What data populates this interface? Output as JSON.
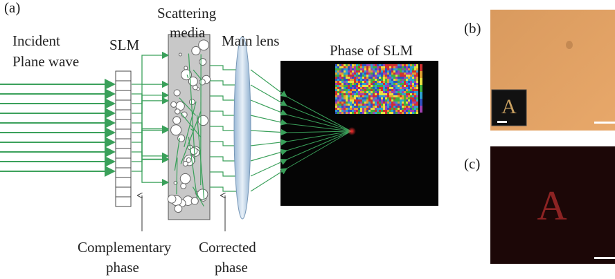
{
  "panel_a": {
    "label": "(a)",
    "incident": [
      "Incident",
      "Plane wave"
    ],
    "slm": "SLM",
    "scattering": [
      "Scattering",
      "media"
    ],
    "lens": "Main lens",
    "phase_title": "Phase of SLM",
    "complementary": [
      "Complementary",
      "phase"
    ],
    "corrected": [
      "Corrected",
      "phase"
    ]
  },
  "panel_b": {
    "label": "(b)",
    "inset_letter": "A"
  },
  "panel_c": {
    "label": "(c)",
    "letter": "A"
  }
}
